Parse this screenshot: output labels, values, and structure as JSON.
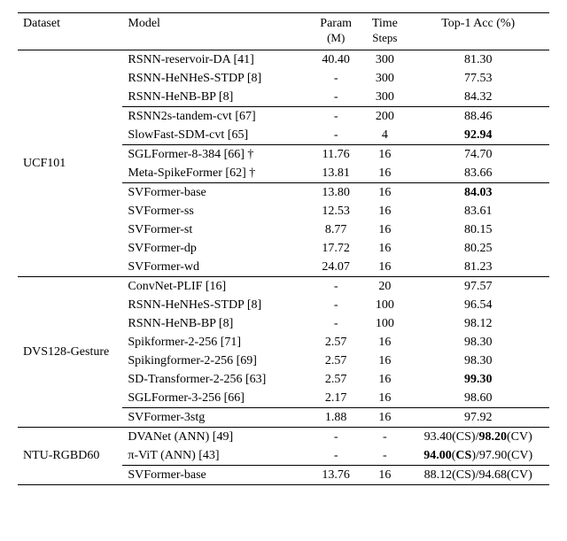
{
  "columns": {
    "dataset": "Dataset",
    "model": "Model",
    "param": "Param",
    "param_sub": "(M)",
    "ts": "Time",
    "ts_sub": "Steps",
    "acc": "Top-1 Acc (%)"
  },
  "datasets": [
    {
      "name": "UCF101",
      "groups": [
        [
          {
            "model": "RSNN-reservoir-DA [41]",
            "param": "40.40",
            "ts": "300",
            "acc": "81.30"
          },
          {
            "model": "RSNN-HeNHeS-STDP [8]",
            "param": "-",
            "ts": "300",
            "acc": "77.53"
          },
          {
            "model": "RSNN-HeNB-BP [8]",
            "param": "-",
            "ts": "300",
            "acc": "84.32"
          }
        ],
        [
          {
            "model": "RSNN2s-tandem-cvt [67]",
            "param": "-",
            "ts": "200",
            "acc": "88.46"
          },
          {
            "model": "SlowFast-SDM-cvt [65]",
            "param": "-",
            "ts": "4",
            "acc": "92.94",
            "acc_bold": true
          }
        ],
        [
          {
            "model": "SGLFormer-8-384 [66] †",
            "param": "11.76",
            "ts": "16",
            "acc": "74.70"
          },
          {
            "model": "Meta-SpikeFormer [62] †",
            "param": "13.81",
            "ts": "16",
            "acc": "83.66"
          }
        ],
        [
          {
            "model": "SVFormer-base",
            "param": "13.80",
            "ts": "16",
            "acc": "84.03",
            "acc_bold": true
          },
          {
            "model": "SVFormer-ss",
            "param": "12.53",
            "ts": "16",
            "acc": "83.61"
          },
          {
            "model": "SVFormer-st",
            "param": "8.77",
            "ts": "16",
            "acc": "80.15"
          },
          {
            "model": "SVFormer-dp",
            "param": "17.72",
            "ts": "16",
            "acc": "80.25"
          },
          {
            "model": "SVFormer-wd",
            "param": "24.07",
            "ts": "16",
            "acc": "81.23"
          }
        ]
      ]
    },
    {
      "name": "DVS128-Gesture",
      "groups": [
        [
          {
            "model": "ConvNet-PLIF [16]",
            "param": "-",
            "ts": "20",
            "acc": "97.57"
          },
          {
            "model": "RSNN-HeNHeS-STDP [8]",
            "param": "-",
            "ts": "100",
            "acc": "96.54"
          },
          {
            "model": "RSNN-HeNB-BP [8]",
            "param": "-",
            "ts": "100",
            "acc": "98.12"
          },
          {
            "model": "Spikformer-2-256 [71]",
            "param": "2.57",
            "ts": "16",
            "acc": "98.30"
          },
          {
            "model": "Spikingformer-2-256 [69]",
            "param": "2.57",
            "ts": "16",
            "acc": "98.30"
          },
          {
            "model": "SD-Transformer-2-256 [63]",
            "param": "2.57",
            "ts": "16",
            "acc": "99.30",
            "acc_bold": true
          },
          {
            "model": "SGLFormer-3-256 [66]",
            "param": "2.17",
            "ts": "16",
            "acc": "98.60"
          }
        ],
        [
          {
            "model": "SVFormer-3stg",
            "param": "1.88",
            "ts": "16",
            "acc": "97.92"
          }
        ]
      ]
    },
    {
      "name": "NTU-RGBD60",
      "groups": [
        [
          {
            "model": "DVANet (ANN) [49]",
            "param": "-",
            "ts": "-",
            "acc_html": "93.40(CS)/<b>98.20</b>(CV)"
          },
          {
            "model": "π-ViT (ANN) [43]",
            "param": "-",
            "ts": "-",
            "acc_html": "<b>94.00</b>(<b>CS</b>)/97.90(CV)"
          }
        ],
        [
          {
            "model": "SVFormer-base",
            "param": "13.76",
            "ts": "16",
            "acc": "88.12(CS)/94.68(CV)"
          }
        ]
      ]
    }
  ]
}
